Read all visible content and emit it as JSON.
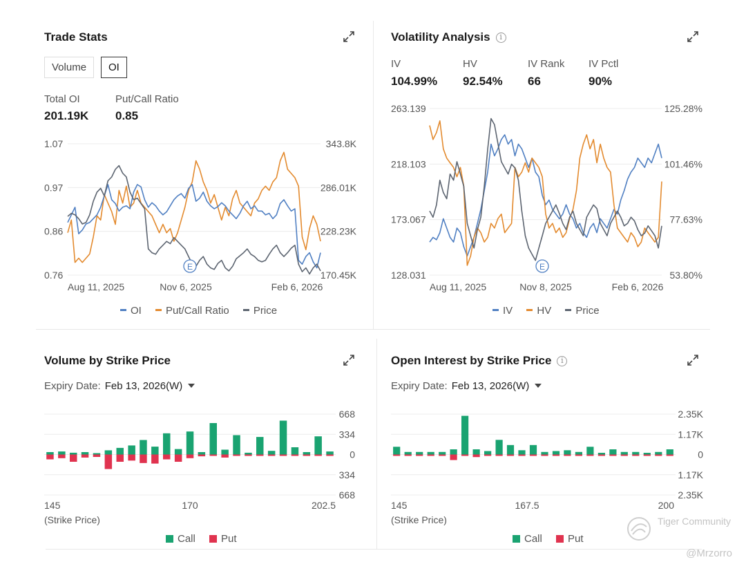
{
  "trade_stats": {
    "title": "Trade Stats",
    "toggle": [
      "Volume",
      "OI"
    ],
    "toggle_active": "OI",
    "total_oi_label": "Total OI",
    "total_oi_value": "201.19K",
    "pcr_label": "Put/Call Ratio",
    "pcr_value": "0.85"
  },
  "volatility": {
    "title": "Volatility Analysis",
    "stats": [
      {
        "label": "IV",
        "value": "104.99%"
      },
      {
        "label": "HV",
        "value": "92.54%"
      },
      {
        "label": "IV Rank",
        "value": "66"
      },
      {
        "label": "IV Pctl",
        "value": "90%"
      }
    ]
  },
  "volume_strike": {
    "title": "Volume by Strike Price",
    "expiry_label": "Expiry Date:",
    "expiry_value": "Feb 13, 2026(W)"
  },
  "oi_strike": {
    "title": "Open Interest by Strike Price",
    "expiry_label": "Expiry Date:",
    "expiry_value": "Feb 13, 2026(W)"
  },
  "colors": {
    "blue": "#4f7fc2",
    "orange": "#e38a2e",
    "gray": "#5c6470",
    "call": "#1aa371",
    "put": "#e0334f"
  },
  "watermark": {
    "brand": "Tiger Community",
    "user": "@Mrzorro"
  },
  "chart_data": [
    {
      "id": "trade",
      "type": "line",
      "title": "Trade Stats",
      "y_left_ticks": [
        "1.07",
        "0.97",
        "0.86",
        "0.76"
      ],
      "y_right_ticks": [
        "343.8K",
        "286.01K",
        "228.23K",
        "170.45K"
      ],
      "y_left_range": [
        0.76,
        1.07
      ],
      "y_right_range": [
        170450,
        343800
      ],
      "x_ticks": [
        "Aug 11, 2025",
        "Nov 6, 2025",
        "Feb 6, 2026"
      ],
      "event_marker": "E",
      "legend": [
        "OI",
        "Put/Call Ratio",
        "Price"
      ],
      "series": [
        {
          "name": "Put/Call Ratio",
          "axis": "left",
          "values": [
            0.86,
            0.89,
            0.79,
            0.8,
            0.79,
            0.8,
            0.81,
            0.85,
            0.9,
            0.89,
            0.95,
            0.93,
            0.91,
            0.88,
            0.96,
            0.93,
            0.97,
            0.92,
            0.93,
            0.96,
            0.93,
            0.92,
            0.91,
            0.9,
            0.88,
            0.86,
            0.88,
            0.86,
            0.87,
            0.84,
            0.86,
            0.89,
            0.92,
            0.96,
            0.98,
            1.03,
            1.01,
            0.98,
            0.96,
            0.93,
            0.95,
            0.92,
            0.89,
            0.92,
            0.9,
            0.94,
            0.96,
            0.93,
            0.92,
            0.91,
            0.9,
            0.93,
            0.94,
            0.96,
            0.97,
            0.96,
            0.98,
            0.99,
            1.03,
            1.05,
            1.01,
            1.0,
            0.99,
            0.97,
            0.85,
            0.82,
            0.87,
            0.9,
            0.88,
            0.84
          ]
        },
        {
          "name": "OI",
          "axis": "right",
          "values": [
            240000,
            250000,
            260000,
            225000,
            230000,
            238000,
            240000,
            245000,
            250000,
            260000,
            275000,
            290000,
            270000,
            265000,
            255000,
            260000,
            262000,
            258000,
            280000,
            290000,
            287000,
            270000,
            260000,
            266000,
            262000,
            255000,
            250000,
            254000,
            262000,
            270000,
            275000,
            278000,
            272000,
            285000,
            290000,
            268000,
            272000,
            280000,
            268000,
            262000,
            258000,
            261000,
            266000,
            262000,
            255000,
            250000,
            245000,
            252000,
            262000,
            268000,
            258000,
            262000,
            255000,
            255000,
            250000,
            252000,
            245000,
            250000,
            265000,
            270000,
            262000,
            255000,
            258000,
            190000,
            185000,
            195000,
            200000,
            188000,
            180000,
            200000
          ]
        },
        {
          "name": "Price",
          "axis": "right",
          "values": [
            248000,
            252000,
            250000,
            245000,
            238000,
            240000,
            250000,
            268000,
            280000,
            285000,
            275000,
            295000,
            300000,
            310000,
            315000,
            305000,
            300000,
            280000,
            270000,
            272000,
            265000,
            258000,
            205000,
            200000,
            198000,
            205000,
            210000,
            215000,
            212000,
            220000,
            215000,
            210000,
            205000,
            195000,
            185000,
            182000,
            190000,
            195000,
            185000,
            180000,
            178000,
            186000,
            190000,
            180000,
            176000,
            182000,
            192000,
            196000,
            200000,
            205000,
            198000,
            195000,
            190000,
            188000,
            190000,
            198000,
            205000,
            210000,
            200000,
            195000,
            200000,
            206000,
            210000,
            185000,
            175000,
            180000,
            172000,
            180000,
            185000,
            176000
          ]
        }
      ]
    },
    {
      "id": "volatility",
      "type": "line",
      "title": "Volatility Analysis",
      "y_left_ticks": [
        "263.139",
        "218.103",
        "173.067",
        "128.031"
      ],
      "y_right_ticks": [
        "125.28%",
        "101.46%",
        "77.63%",
        "53.80%"
      ],
      "y_left_range": [
        128.031,
        263.139
      ],
      "y_right_range": [
        53.8,
        125.28
      ],
      "x_ticks": [
        "Aug 11, 2025",
        "Nov 8, 2025",
        "Feb 6, 2026"
      ],
      "event_marker": "E",
      "legend": [
        "IV",
        "HV",
        "Price"
      ],
      "series": [
        {
          "name": "IV",
          "axis": "right",
          "values": [
            68,
            70,
            69,
            72,
            78,
            74,
            70,
            68,
            74,
            72,
            66,
            62,
            66,
            70,
            76,
            82,
            90,
            98,
            110,
            105,
            108,
            112,
            114,
            110,
            112,
            105,
            110,
            108,
            104,
            100,
            104,
            98,
            96,
            88,
            84,
            86,
            82,
            80,
            78,
            80,
            84,
            80,
            78,
            74,
            76,
            72,
            70,
            74,
            76,
            72,
            78,
            76,
            74,
            78,
            82,
            80,
            86,
            90,
            95,
            98,
            100,
            104,
            102,
            100,
            104,
            102,
            106,
            110,
            104
          ]
        },
        {
          "name": "HV",
          "axis": "right",
          "values": [
            118,
            112,
            115,
            120,
            108,
            104,
            102,
            100,
            96,
            100,
            92,
            58,
            62,
            70,
            74,
            72,
            68,
            70,
            76,
            74,
            78,
            80,
            72,
            74,
            76,
            100,
            96,
            98,
            102,
            98,
            104,
            102,
            100,
            96,
            80,
            74,
            76,
            72,
            74,
            70,
            72,
            78,
            82,
            90,
            104,
            110,
            114,
            108,
            112,
            102,
            110,
            104,
            100,
            98,
            84,
            74,
            72,
            70,
            68,
            72,
            70,
            66,
            68,
            74,
            72,
            70,
            68,
            70,
            94
          ]
        },
        {
          "name": "Price",
          "axis": "left",
          "values": [
            180,
            175,
            185,
            205,
            195,
            190,
            210,
            205,
            220,
            210,
            200,
            170,
            160,
            150,
            165,
            175,
            200,
            230,
            255,
            250,
            235,
            220,
            215,
            210,
            218,
            215,
            205,
            180,
            160,
            150,
            145,
            140,
            150,
            160,
            170,
            175,
            180,
            185,
            178,
            170,
            165,
            175,
            180,
            170,
            165,
            160,
            175,
            180,
            185,
            182,
            170,
            165,
            160,
            170,
            175,
            180,
            175,
            168,
            170,
            175,
            172,
            165,
            160,
            162,
            168,
            164,
            160,
            150,
            168
          ]
        }
      ]
    },
    {
      "id": "volume_strike",
      "type": "bar",
      "title": "Volume by Strike Price",
      "x_ticks": [
        "145",
        "170",
        "202.5"
      ],
      "x_caption": "(Strike Price)",
      "y_ticks": [
        "668",
        "334",
        "0",
        "334",
        "668"
      ],
      "y_max": 668,
      "legend": [
        "Call",
        "Put"
      ],
      "call": [
        40,
        50,
        30,
        40,
        20,
        70,
        110,
        150,
        240,
        130,
        350,
        90,
        380,
        40,
        520,
        80,
        320,
        30,
        290,
        60,
        560,
        120,
        40,
        300,
        50
      ],
      "put": [
        -80,
        -60,
        -120,
        -50,
        -40,
        -240,
        -120,
        -100,
        -140,
        -150,
        -80,
        -120,
        -60,
        -30,
        -20,
        -50,
        -20,
        -10,
        -10,
        -10,
        -20,
        -20,
        -10,
        -10,
        -10
      ]
    },
    {
      "id": "oi_strike",
      "type": "bar",
      "title": "Open Interest by Strike Price",
      "x_ticks": [
        "145",
        "167.5",
        "200"
      ],
      "x_caption": "(Strike Price)",
      "y_ticks": [
        "2.35K",
        "1.17K",
        "0",
        "1.17K",
        "2.35K"
      ],
      "y_max": 2350,
      "legend": [
        "Call",
        "Put"
      ],
      "call": [
        450,
        150,
        150,
        150,
        150,
        300,
        2250,
        300,
        200,
        850,
        550,
        250,
        550,
        150,
        200,
        250,
        150,
        450,
        100,
        300,
        150,
        150,
        100,
        150,
        300
      ],
      "put": [
        -80,
        -40,
        -40,
        -40,
        -60,
        -320,
        -60,
        -150,
        -80,
        -80,
        -40,
        -60,
        -40,
        -40,
        -40,
        -40,
        -40,
        -60,
        -20,
        -40,
        -40,
        -40,
        -40,
        -40,
        -40
      ]
    }
  ]
}
